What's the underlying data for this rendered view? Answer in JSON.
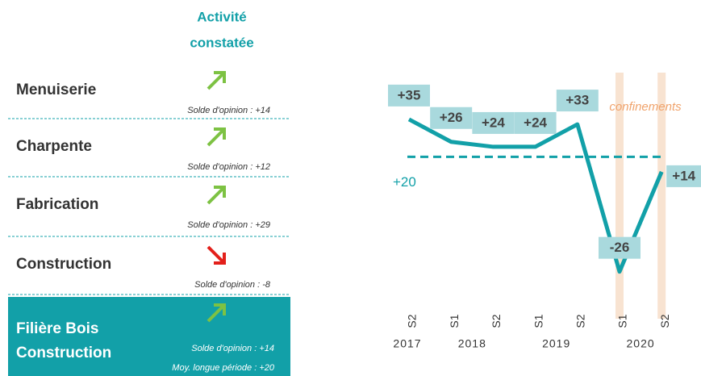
{
  "panel": {
    "header": [
      "Activité",
      "constatée"
    ],
    "rows": [
      {
        "name": [
          "Menuiserie"
        ],
        "direction": "up",
        "notes": [
          "Solde d'opinion : +14"
        ]
      },
      {
        "name": [
          "Charpente"
        ],
        "direction": "up",
        "notes": [
          "Solde d'opinion : +12"
        ]
      },
      {
        "name": [
          "Fabrication"
        ],
        "direction": "up",
        "notes": [
          "Solde d'opinion : +29"
        ]
      },
      {
        "name": [
          "Construction"
        ],
        "direction": "down",
        "notes": [
          "Solde d'opinion : -8"
        ]
      },
      {
        "name": [
          "Filière Bois",
          "Construction"
        ],
        "direction": "up",
        "highlight": true,
        "notes": [
          "Solde d'opinion : +14",
          "Moy. longue période : +20"
        ]
      }
    ]
  },
  "chart_data": {
    "type": "line",
    "categories": [
      "S2",
      "S1",
      "S2",
      "S1",
      "S2",
      "S1",
      "S2"
    ],
    "x_groups": [
      {
        "label": "2017",
        "from": 0,
        "to": 0
      },
      {
        "label": "2018",
        "from": 1,
        "to": 2
      },
      {
        "label": "2019",
        "from": 3,
        "to": 4
      },
      {
        "label": "2020",
        "from": 5,
        "to": 6
      }
    ],
    "values": [
      35,
      26,
      24,
      24,
      33,
      -26,
      14
    ],
    "value_labels": [
      "+35",
      "+26",
      "+24",
      "+24",
      "+33",
      "-26",
      "+14"
    ],
    "color": "#12a0a8",
    "ylim": [
      -40,
      55
    ],
    "reference_line": {
      "value": 20,
      "label": "+20"
    },
    "shaded_categories": [
      5,
      6
    ],
    "annotation": "confinements"
  }
}
